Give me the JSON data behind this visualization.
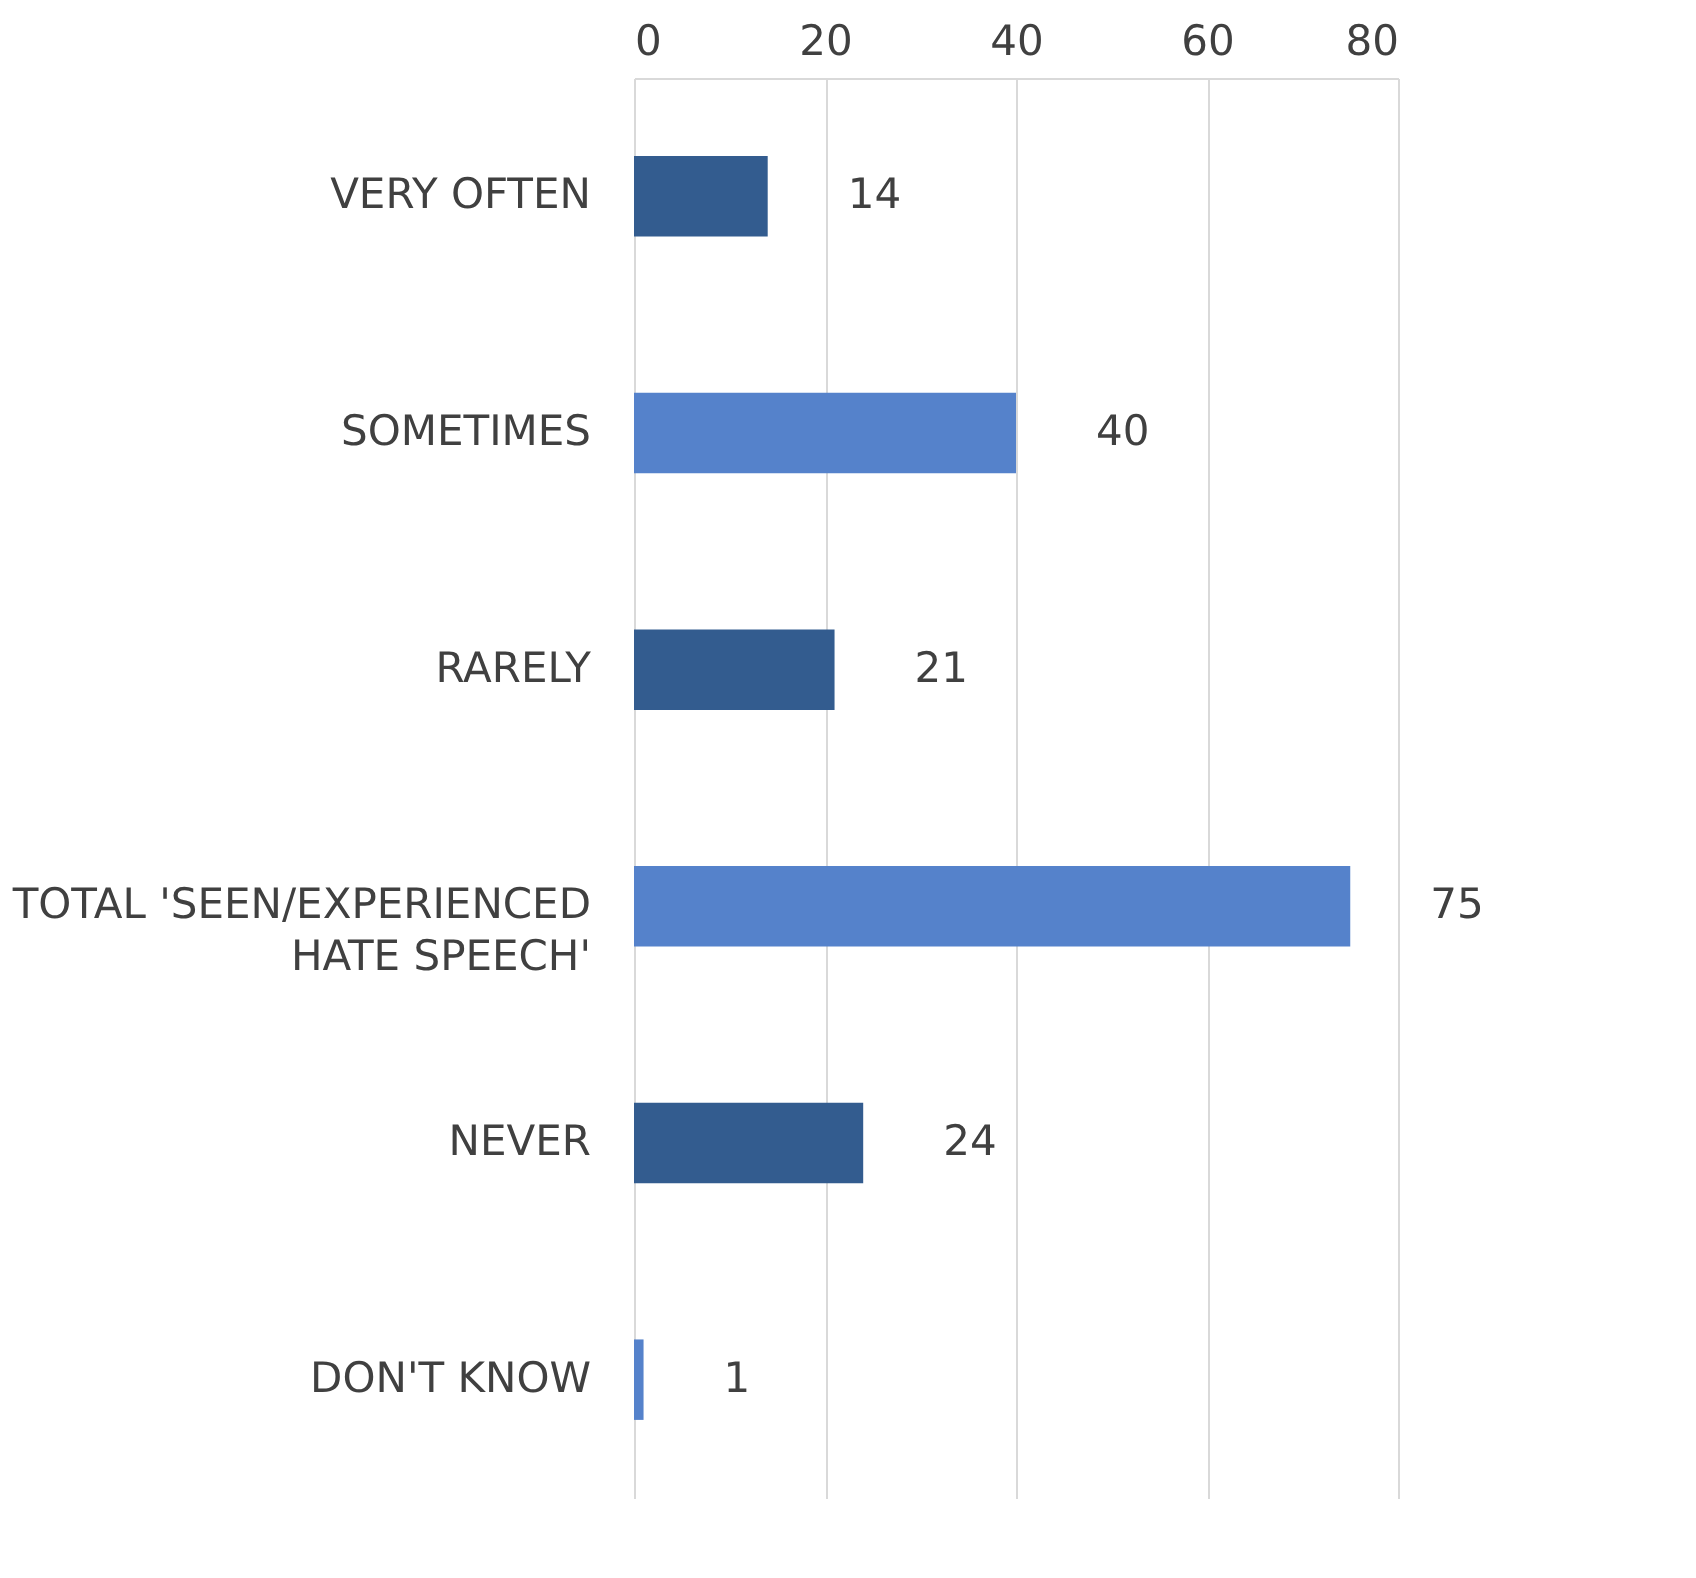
{
  "chart_data": {
    "type": "bar",
    "orientation": "horizontal",
    "categories": [
      "VERY OFTEN",
      "SOMETIMES",
      "RARELY",
      "TOTAL 'SEEN/EXPERIENCED HATE SPEECH'",
      "NEVER",
      "DON'T KNOW"
    ],
    "values": [
      14,
      40,
      21,
      75,
      24,
      1
    ],
    "colors": [
      "#335c8f",
      "#5582cb",
      "#335c8f",
      "#5582cb",
      "#335c8f",
      "#5582cb"
    ],
    "xlim": [
      0,
      80
    ],
    "xticks": [
      0,
      20,
      40,
      60,
      80
    ],
    "grid": "x",
    "data_labels": true
  }
}
